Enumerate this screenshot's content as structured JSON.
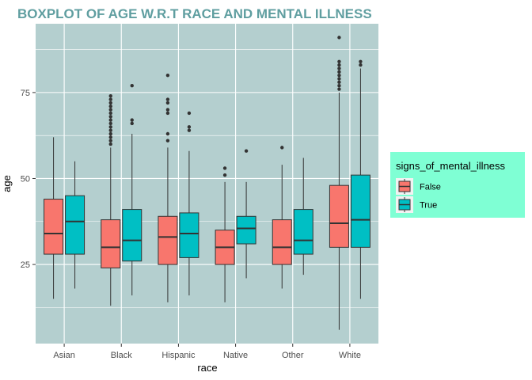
{
  "chart_data": {
    "type": "boxplot",
    "title": "BOXPLOT OF AGE W.R.T RACE AND MENTAL ILLNESS",
    "xlabel": "race",
    "ylabel": "age",
    "categories": [
      "Asian",
      "Black",
      "Hispanic",
      "Native",
      "Other",
      "White"
    ],
    "ylim": [
      2,
      95
    ],
    "yticks": [
      25,
      50,
      75
    ],
    "grid": true,
    "panel_color": "#b4cfcf",
    "legend": {
      "title": "signs_of_mental_illness",
      "position": "right",
      "background": "#7fffd4",
      "entries": [
        {
          "label": "False",
          "color": "#f8766d"
        },
        {
          "label": "True",
          "color": "#00bfc4"
        }
      ]
    },
    "series": [
      {
        "name": "False",
        "color": "#f8766d",
        "boxes": [
          {
            "min": 15,
            "q1": 28,
            "median": 34,
            "q3": 44,
            "max": 62,
            "outliers": []
          },
          {
            "min": 13,
            "q1": 24,
            "median": 30,
            "q3": 38,
            "max": 59,
            "outliers": [
              60,
              61,
              62,
              63,
              64,
              65,
              66,
              67,
              68,
              69,
              70,
              71,
              72,
              73,
              74
            ]
          },
          {
            "min": 14,
            "q1": 25,
            "median": 33,
            "q3": 39,
            "max": 59,
            "outliers": [
              61,
              63,
              69,
              70,
              72,
              73,
              80
            ]
          },
          {
            "min": 14,
            "q1": 25,
            "median": 30,
            "q3": 35,
            "max": 49,
            "outliers": [
              51,
              53
            ]
          },
          {
            "min": 18,
            "q1": 25,
            "median": 30,
            "q3": 38,
            "max": 54,
            "outliers": [
              59
            ]
          },
          {
            "min": 6,
            "q1": 30,
            "median": 37,
            "q3": 48,
            "max": 75,
            "outliers": [
              76,
              77,
              78,
              79,
              80,
              81,
              82,
              83,
              84,
              91
            ]
          }
        ]
      },
      {
        "name": "True",
        "color": "#00bfc4",
        "boxes": [
          {
            "min": 18,
            "q1": 28,
            "median": 37.5,
            "q3": 45,
            "max": 55,
            "outliers": []
          },
          {
            "min": 16,
            "q1": 26,
            "median": 32,
            "q3": 41,
            "max": 63,
            "outliers": [
              66,
              67,
              77
            ]
          },
          {
            "min": 16,
            "q1": 27,
            "median": 34,
            "q3": 40,
            "max": 58,
            "outliers": [
              64,
              65,
              69
            ]
          },
          {
            "min": 21,
            "q1": 31,
            "median": 35.5,
            "q3": 39,
            "max": 49,
            "outliers": [
              58
            ]
          },
          {
            "min": 22,
            "q1": 28,
            "median": 32,
            "q3": 41,
            "max": 56,
            "outliers": []
          },
          {
            "min": 15,
            "q1": 30,
            "median": 38,
            "q3": 51,
            "max": 82,
            "outliers": [
              83,
              84
            ]
          }
        ]
      }
    ]
  }
}
